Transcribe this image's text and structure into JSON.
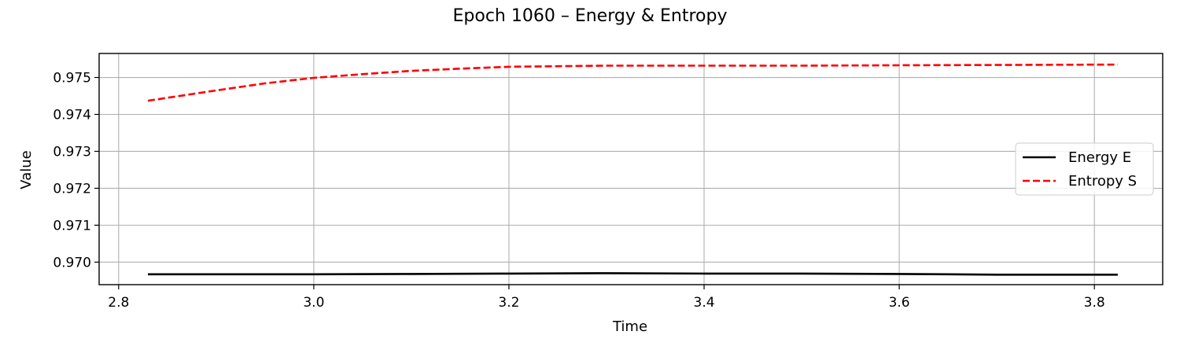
{
  "chart_data": {
    "type": "line",
    "title": "Epoch 1060 – Energy & Entropy",
    "xlabel": "Time",
    "ylabel": "Value",
    "xlim": [
      2.78,
      3.87
    ],
    "ylim": [
      0.96939,
      0.97565
    ],
    "x_ticks": [
      2.8,
      3.0,
      3.2,
      3.4,
      3.6,
      3.8
    ],
    "x_tick_labels": [
      "2.8",
      "3.0",
      "3.2",
      "3.4",
      "3.6",
      "3.8"
    ],
    "y_ticks": [
      0.97,
      0.971,
      0.972,
      0.973,
      0.974,
      0.975
    ],
    "y_tick_labels": [
      "0.970",
      "0.971",
      "0.972",
      "0.973",
      "0.974",
      "0.975"
    ],
    "grid": true,
    "legend_position": "center-right",
    "series": [
      {
        "name": "Energy E",
        "color": "#000000",
        "style": "solid",
        "x": [
          2.83,
          2.9,
          3.0,
          3.1,
          3.2,
          3.3,
          3.4,
          3.5,
          3.6,
          3.65,
          3.7,
          3.75,
          3.824
        ],
        "y": [
          0.96967,
          0.96967,
          0.96967,
          0.96968,
          0.96969,
          0.9697,
          0.96969,
          0.96969,
          0.96968,
          0.96967,
          0.96966,
          0.96966,
          0.96966
        ]
      },
      {
        "name": "Entropy S",
        "color": "#ff0000",
        "style": "dashed",
        "x": [
          2.83,
          2.9,
          2.95,
          3.0,
          3.05,
          3.1,
          3.15,
          3.2,
          3.3,
          3.4,
          3.5,
          3.6,
          3.7,
          3.824
        ],
        "y": [
          0.97437,
          0.97465,
          0.97484,
          0.97499,
          0.97509,
          0.97518,
          0.97524,
          0.97529,
          0.97532,
          0.97532,
          0.97532,
          0.97533,
          0.97534,
          0.97535
        ]
      }
    ]
  }
}
